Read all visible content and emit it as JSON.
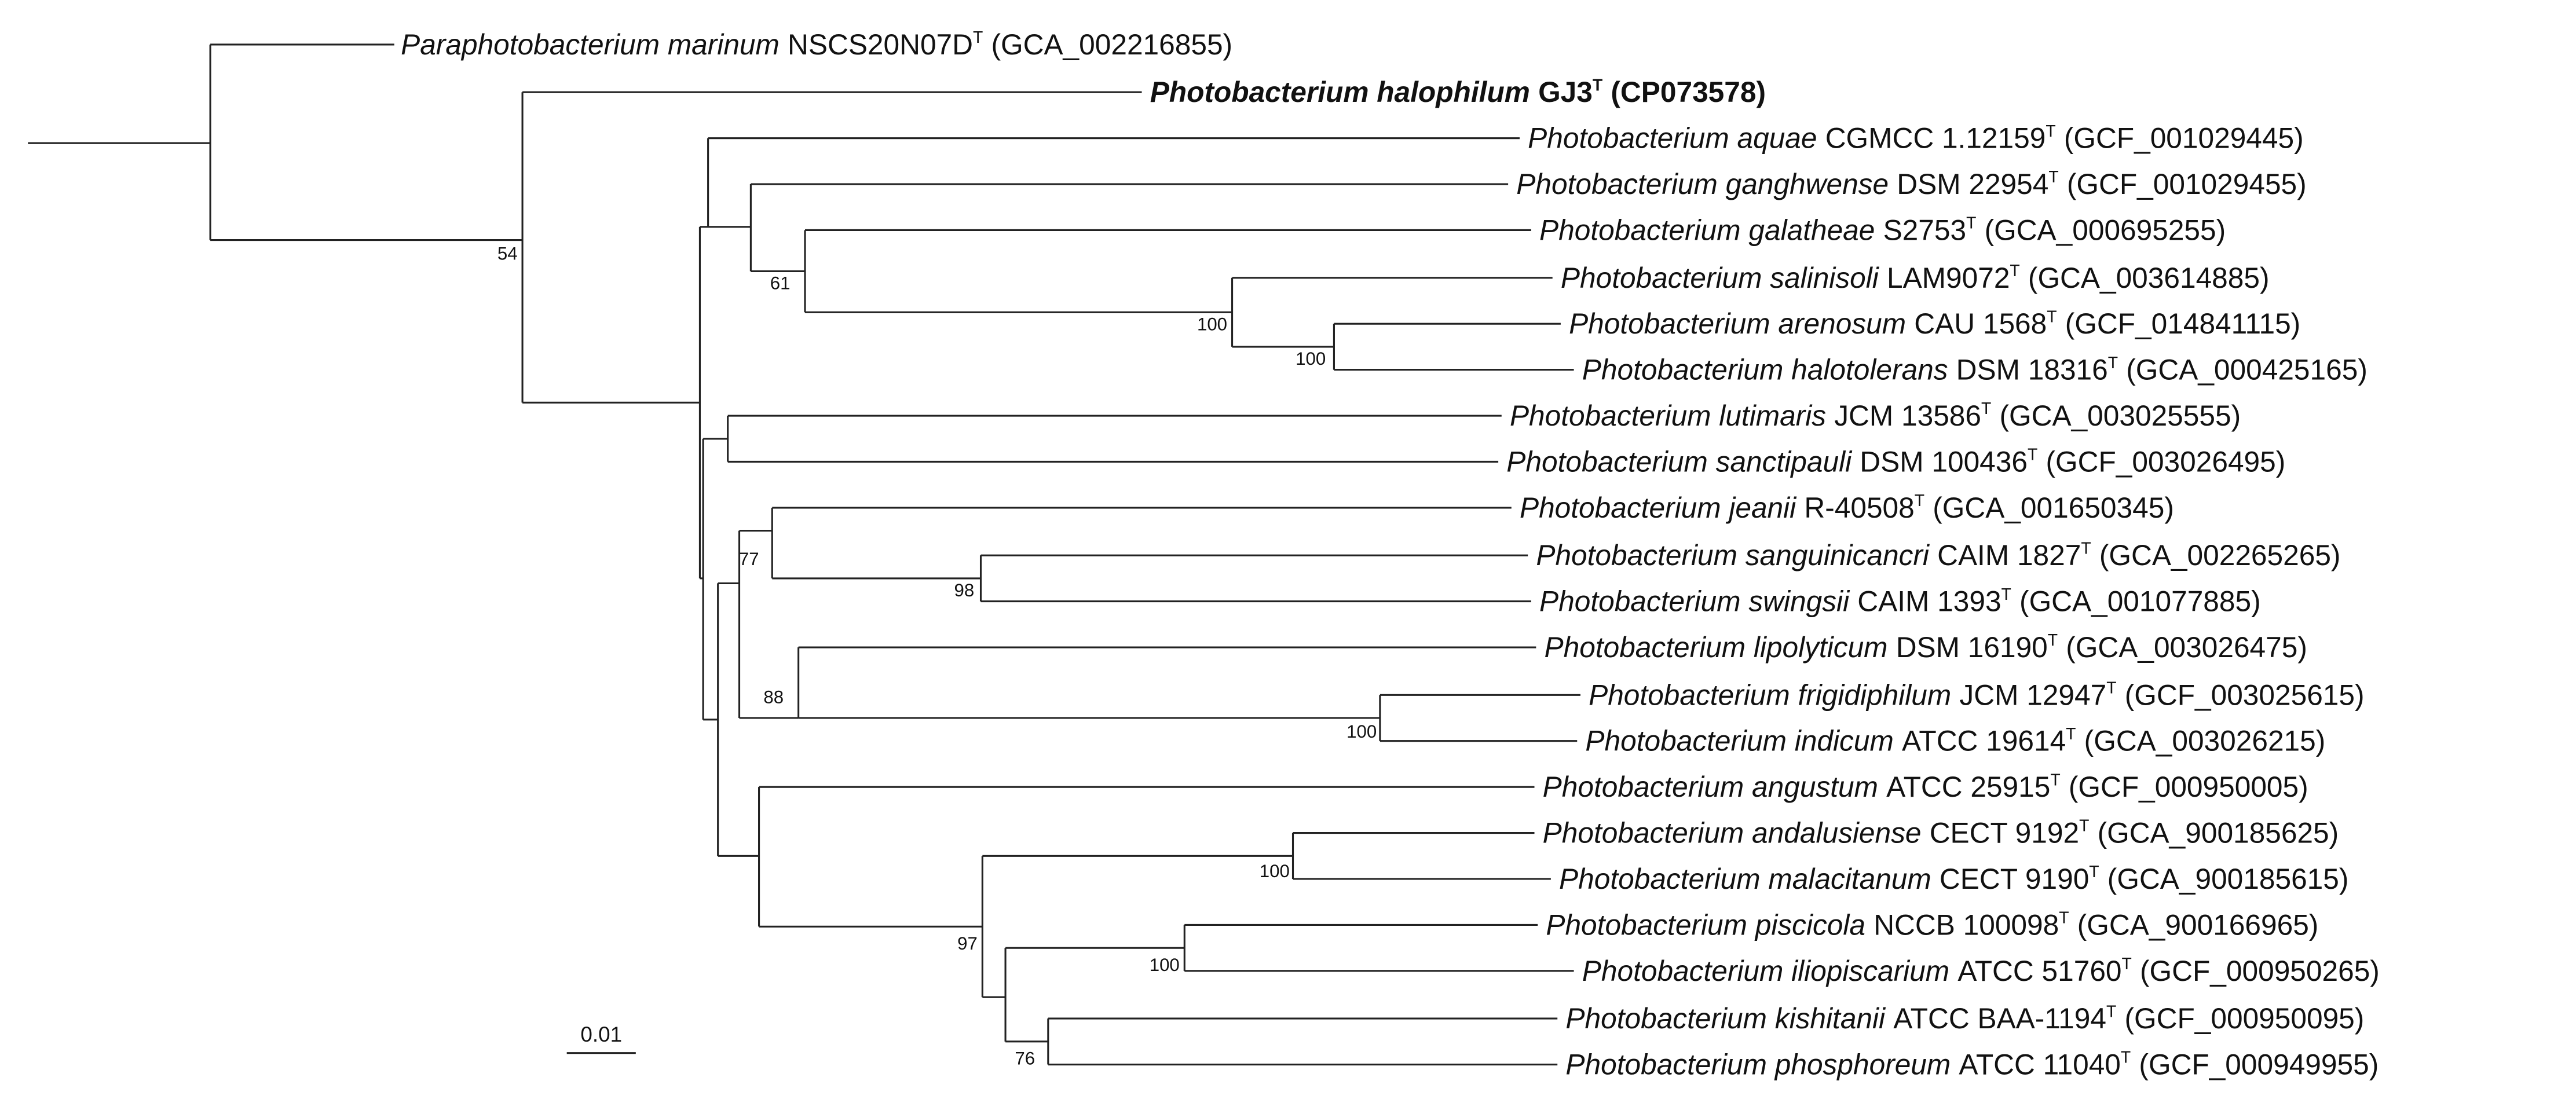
{
  "leaves": [
    {
      "species": "Paraphotobacterium marinum",
      "strain": "NSCS20N07D",
      "type_mark": "T",
      "accession": "(GCA_002216855)"
    },
    {
      "species": "Photobacterium halophilum",
      "strain": "GJ3",
      "type_mark": "T",
      "accession": "(CP073578)"
    },
    {
      "species": "Photobacterium aquae",
      "strain": "CGMCC 1.12159",
      "type_mark": "T",
      "accession": "(GCF_001029445)"
    },
    {
      "species": "Photobacterium ganghwense",
      "strain": "DSM 22954",
      "type_mark": "T",
      "accession": "(GCF_001029455)"
    },
    {
      "species": "Photobacterium galatheae",
      "strain": "S2753",
      "type_mark": "T",
      "accession": "(GCA_000695255)"
    },
    {
      "species": "Photobacterium salinisoli",
      "strain": "LAM9072",
      "type_mark": "T",
      "accession": "(GCA_003614885)"
    },
    {
      "species": "Photobacterium arenosum",
      "strain": "CAU 1568",
      "type_mark": "T",
      "accession": "(GCF_014841115)"
    },
    {
      "species": "Photobacterium halotolerans",
      "strain": "DSM 18316",
      "type_mark": "T",
      "accession": "(GCA_000425165)"
    },
    {
      "species": "Photobacterium lutimaris",
      "strain": "JCM 13586",
      "type_mark": "T",
      "accession": "(GCA_003025555)"
    },
    {
      "species": "Photobacterium sanctipauli",
      "strain": "DSM 100436",
      "type_mark": "T",
      "accession": "(GCF_003026495)"
    },
    {
      "species": "Photobacterium jeanii",
      "strain": "R-40508",
      "type_mark": "T",
      "accession": "(GCA_001650345)"
    },
    {
      "species": "Photobacterium sanguinicancri",
      "strain": "CAIM 1827",
      "type_mark": "T",
      "accession": "(GCA_002265265)"
    },
    {
      "species": "Photobacterium swingsii",
      "strain": "CAIM 1393",
      "type_mark": "T",
      "accession": "(GCA_001077885)"
    },
    {
      "species": "Photobacterium lipolyticum",
      "strain": "DSM 16190",
      "type_mark": "T",
      "accession": "(GCA_003026475)"
    },
    {
      "species": "Photobacterium frigidiphilum",
      "strain": "JCM 12947",
      "type_mark": "T",
      "accession": "(GCF_003025615)"
    },
    {
      "species": "Photobacterium indicum",
      "strain": "ATCC 19614",
      "type_mark": "T",
      "accession": "(GCA_003026215)"
    },
    {
      "species": "Photobacterium angustum",
      "strain": "ATCC 25915",
      "type_mark": "T",
      "accession": "(GCF_000950005)"
    },
    {
      "species": "Photobacterium andalusiense",
      "strain": "CECT 9192",
      "type_mark": "T",
      "accession": "(GCA_900185625)"
    },
    {
      "species": "Photobacterium malacitanum",
      "strain": "CECT 9190",
      "type_mark": "T",
      "accession": "(GCA_900185615)"
    },
    {
      "species": "Photobacterium piscicola",
      "strain": "NCCB 100098",
      "type_mark": "T",
      "accession": "(GCA_900166965)"
    },
    {
      "species": "Photobacterium iliopiscarium",
      "strain": "ATCC 51760",
      "type_mark": "T",
      "accession": "(GCF_000950265)"
    },
    {
      "species": "Photobacterium kishitanii",
      "strain": "ATCC BAA-1194",
      "type_mark": "T",
      "accession": "(GCF_000950095)"
    },
    {
      "species": "Photobacterium phosphoreum",
      "strain": "ATCC 11040",
      "type_mark": "T",
      "accession": "(GCF_000949955)"
    }
  ],
  "bootstrap": [
    54,
    61,
    100,
    100,
    77,
    98,
    88,
    100,
    97,
    100,
    100,
    76
  ],
  "scale_bar": "0.01"
}
